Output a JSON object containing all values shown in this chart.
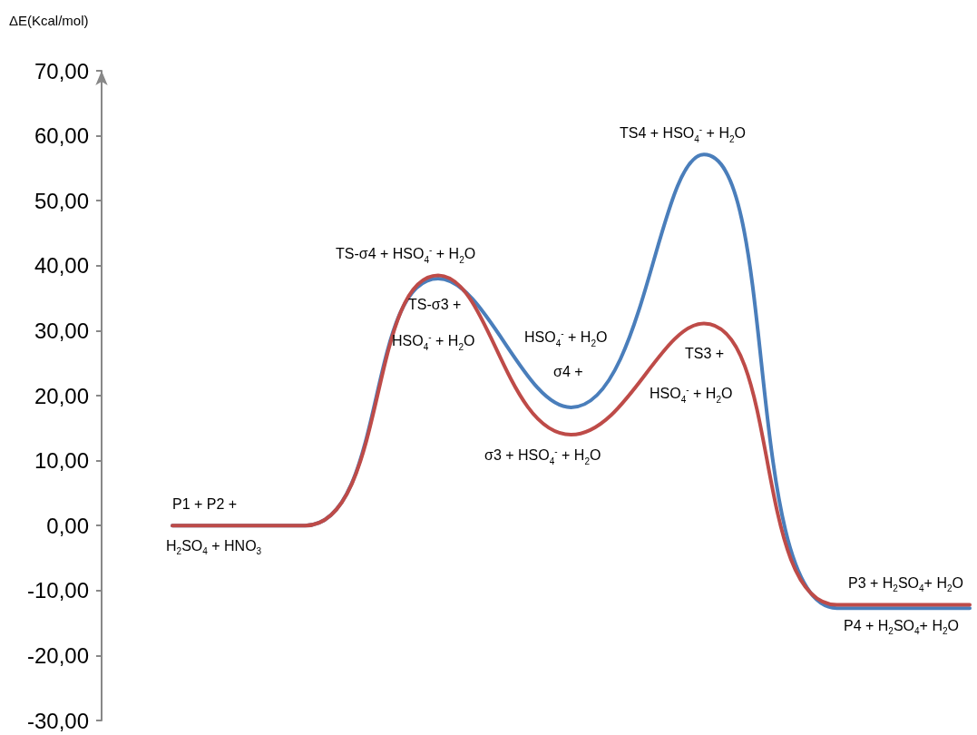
{
  "chart_data": {
    "type": "line",
    "ylabel": "ΔE(Kcal/mol)",
    "categories": [
      null,
      null,
      null,
      null,
      null,
      null,
      null
    ],
    "series": [
      {
        "color": "#4a7ebb",
        "values": [
          0,
          0,
          38.0,
          18.2,
          57.1,
          -12.7,
          -12.7
        ]
      },
      {
        "color": "#be4b48",
        "values": [
          0,
          0,
          38.5,
          14.0,
          31.1,
          -12.2,
          -12.2
        ]
      }
    ],
    "ylim": [
      -30,
      70
    ],
    "yticks": [
      {
        "value": -30,
        "label": "-30,00"
      },
      {
        "value": -20,
        "label": "-20,00"
      },
      {
        "value": -10,
        "label": "-10,00"
      },
      {
        "value": 0,
        "label": "0,00"
      },
      {
        "value": 10,
        "label": "10,00"
      },
      {
        "value": 20,
        "label": "20,00"
      },
      {
        "value": 30,
        "label": "30,00"
      },
      {
        "value": 40,
        "label": "40,00"
      },
      {
        "value": 50,
        "label": "50,00"
      },
      {
        "value": 60,
        "label": "60,00"
      },
      {
        "value": 70,
        "label": "70,00"
      }
    ],
    "tick_labels": "y",
    "grid": false,
    "marker": "none",
    "annotations": [
      "TS-σ4 + HSO$_{4}$$^{-}$ + H$_{2}$O",
      "TS-σ3 +",
      "HSO$_{4}$$^{-}$ + H$_{2}$O",
      "HSO$_{4}$$^{-}$ + H$_{2}$O",
      "σ4 +",
      "TS4 + HSO$_{4}$$^{-}$ + H$_{2}$O",
      "TS3 +",
      "HSO$_{4}$$^{-}$ + H$_{2}$O",
      "σ3 + HSO$_{4}$$^{-}$ + H$_{2}$O",
      "P1 + P2 +",
      "H$_{2}$SO$_{4}$ + HNO$_{3}$",
      "P3 + H$_{2}$SO$_{4}$+ H$_{2}$O",
      "P4 + H$_{2}$SO$_{4}$+ H$_{2}$O"
    ]
  }
}
